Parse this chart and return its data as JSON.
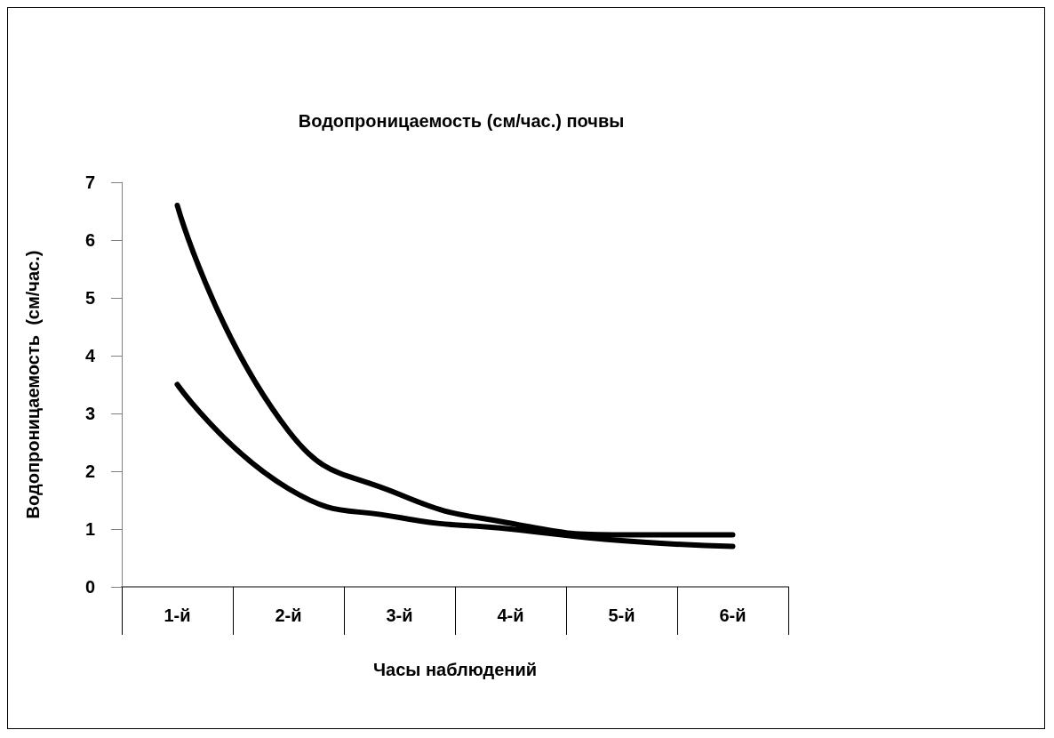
{
  "chart_data": {
    "type": "line",
    "title": "Водопроницаемость (см/час.) почвы",
    "xlabel": "Часы наблюдений",
    "ylabel": "Водопроницаемость  (см/час.)",
    "categories": [
      "1-й",
      "2-й",
      "3-й",
      "4-й",
      "5-й",
      "6-й"
    ],
    "series": [
      {
        "color": "#000000",
        "values": [
          6.6,
          2.7,
          1.6,
          1.1,
          0.9,
          0.9
        ]
      },
      {
        "color": "#000000",
        "values": [
          3.5,
          1.7,
          1.2,
          1.0,
          0.8,
          0.7
        ]
      }
    ],
    "ylim": [
      0,
      7
    ],
    "yticks": [
      0,
      1,
      2,
      3,
      4,
      5,
      6,
      7
    ],
    "grid": false,
    "marker": "none",
    "line_style": "solid"
  }
}
